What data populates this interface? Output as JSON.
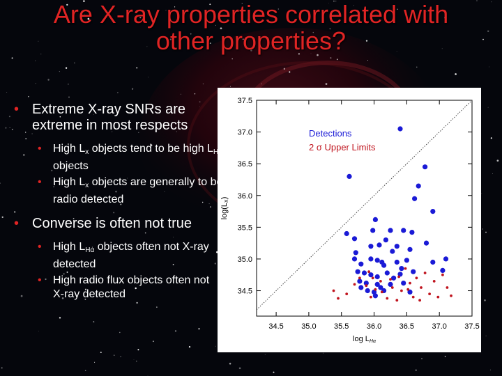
{
  "slide": {
    "title_line1": "Are X-ray properties correlated with",
    "title_line2": "other properties?",
    "bullet_char": "•",
    "bullets": [
      {
        "text": "Extreme X-ray SNRs are extreme in most respects"
      },
      {
        "text": "Converse is often not true"
      }
    ],
    "sub1": {
      "a_pre": "High L",
      "a_sub1": "x",
      "a_mid": " objects tend to be high L",
      "a_sub2": "Hα",
      "a_post": " objects",
      "b_pre": "High L",
      "b_sub": "x",
      "b_post": " objects are generally to be radio detected"
    },
    "sub2": {
      "a_pre": "High L",
      "a_sub": "Hα",
      "a_post": " objects often not X-ray detected",
      "b": "High radio flux objects often not X-ray detected"
    },
    "colors": {
      "title": "#e02424",
      "bullet": "#e02424",
      "text": "#ffffff"
    }
  },
  "chart_data": {
    "type": "scatter",
    "xlabel_main": "log L",
    "xlabel_sub": "Hα",
    "ylabel": "log(L",
    "ylabel_sub": "X",
    "ylabel_close": ")",
    "xlim": [
      34.2,
      37.5
    ],
    "ylim": [
      34.1,
      37.5
    ],
    "xticks": [
      "34.5",
      "35.0",
      "35.5",
      "36.0",
      "36.5",
      "37.0",
      "37.5"
    ],
    "yticks": [
      "34.5",
      "35.0",
      "35.5",
      "36.0",
      "36.5",
      "37.0",
      "37.5"
    ],
    "diagonal": true,
    "legend_position": "top-left",
    "series": [
      {
        "name": "Detections",
        "color": "#1a1ad6",
        "points": [
          [
            36.4,
            37.05
          ],
          [
            36.78,
            36.45
          ],
          [
            36.68,
            36.15
          ],
          [
            35.62,
            36.3
          ],
          [
            36.62,
            35.95
          ],
          [
            36.9,
            35.75
          ],
          [
            35.58,
            35.4
          ],
          [
            35.7,
            35.32
          ],
          [
            35.98,
            35.45
          ],
          [
            36.45,
            35.45
          ],
          [
            36.58,
            35.42
          ],
          [
            35.72,
            35.1
          ],
          [
            35.95,
            35.2
          ],
          [
            36.08,
            35.22
          ],
          [
            36.18,
            35.3
          ],
          [
            36.8,
            35.25
          ],
          [
            36.28,
            35.12
          ],
          [
            35.8,
            34.92
          ],
          [
            36.05,
            34.98
          ],
          [
            36.12,
            34.95
          ],
          [
            36.35,
            34.95
          ],
          [
            36.5,
            34.98
          ],
          [
            36.42,
            34.85
          ],
          [
            37.1,
            35.0
          ],
          [
            35.75,
            34.8
          ],
          [
            35.85,
            34.78
          ],
          [
            35.95,
            34.75
          ],
          [
            36.05,
            34.72
          ],
          [
            36.2,
            34.78
          ],
          [
            36.3,
            34.7
          ],
          [
            36.4,
            34.76
          ],
          [
            36.6,
            34.8
          ],
          [
            36.15,
            34.9
          ],
          [
            35.78,
            34.65
          ],
          [
            35.88,
            34.62
          ],
          [
            36.05,
            34.6
          ],
          [
            36.1,
            34.55
          ],
          [
            36.25,
            34.6
          ],
          [
            36.45,
            34.62
          ],
          [
            35.8,
            34.55
          ],
          [
            35.9,
            34.5
          ],
          [
            36.0,
            34.48
          ],
          [
            36.02,
            34.42
          ],
          [
            36.15,
            34.5
          ],
          [
            36.55,
            34.48
          ],
          [
            36.02,
            35.62
          ],
          [
            35.7,
            35.0
          ],
          [
            36.9,
            34.95
          ],
          [
            37.05,
            34.82
          ],
          [
            36.25,
            35.45
          ],
          [
            36.35,
            35.2
          ],
          [
            35.95,
            35.0
          ],
          [
            36.55,
            35.15
          ]
        ]
      },
      {
        "name": "2 σ Upper Limits",
        "color": "#c0141e",
        "points": [
          [
            35.38,
            34.5
          ],
          [
            35.58,
            34.45
          ],
          [
            35.7,
            34.6
          ],
          [
            35.78,
            34.7
          ],
          [
            35.88,
            34.58
          ],
          [
            35.95,
            34.4
          ],
          [
            35.98,
            34.7
          ],
          [
            36.1,
            34.65
          ],
          [
            36.12,
            34.48
          ],
          [
            36.2,
            34.38
          ],
          [
            36.28,
            34.55
          ],
          [
            36.38,
            34.72
          ],
          [
            36.42,
            34.5
          ],
          [
            36.48,
            34.85
          ],
          [
            36.55,
            34.62
          ],
          [
            36.6,
            34.4
          ],
          [
            36.65,
            34.7
          ],
          [
            36.72,
            34.55
          ],
          [
            36.78,
            34.78
          ],
          [
            36.85,
            34.45
          ],
          [
            36.92,
            34.65
          ],
          [
            36.98,
            34.4
          ],
          [
            37.05,
            34.75
          ],
          [
            37.12,
            34.55
          ],
          [
            37.18,
            34.42
          ],
          [
            35.92,
            34.8
          ],
          [
            36.02,
            34.52
          ],
          [
            36.25,
            34.68
          ],
          [
            36.35,
            34.35
          ],
          [
            36.7,
            34.35
          ],
          [
            35.45,
            34.38
          ],
          [
            36.52,
            34.52
          ]
        ]
      }
    ]
  }
}
